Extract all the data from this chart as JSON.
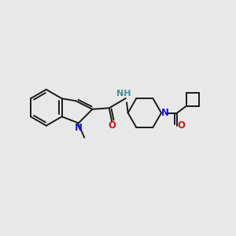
{
  "bg_color": "#e8e8e8",
  "bond_color": "#1a1a1a",
  "N_color": "#1a1acc",
  "O_color": "#cc1a1a",
  "H_color": "#4a9090",
  "line_width": 1.4,
  "font_size": 8.5,
  "xlim": [
    0,
    10
  ],
  "ylim": [
    0,
    10
  ]
}
